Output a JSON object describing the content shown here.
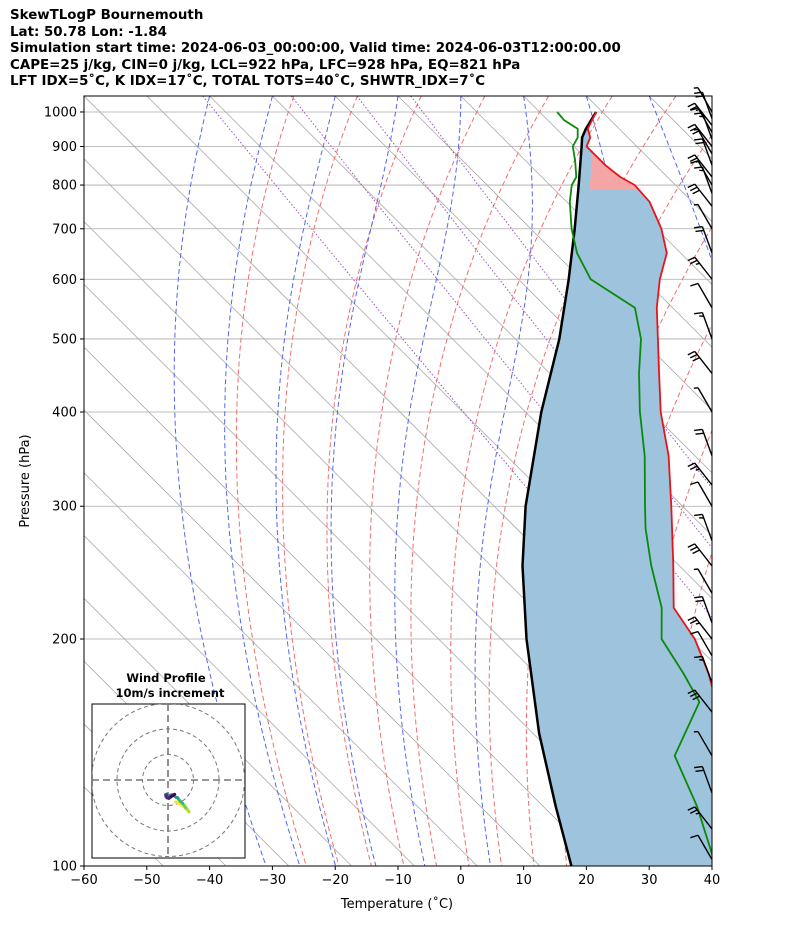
{
  "header": {
    "lines": [
      "SkewTLogP Bournemouth",
      "Lat: 50.78   Lon: -1.84",
      "Simulation start time: 2024-06-03_00:00:00, Valid time: 2024-06-03T12:00:00.00",
      "CAPE=25 j/kg, CIN=0 j/kg, LCL=922 hPa, LFC=928 hPa, EQ=821 hPa",
      "LFT IDX=5˚C, K IDX=17˚C, TOTAL TOTS=40˚C, SHWTR_IDX=7˚C"
    ]
  },
  "colors": {
    "temperature": "#e8141c",
    "dewpoint": "#0a8a0a",
    "parcel": "#000000",
    "cape": "#9ec3dd",
    "cin": "#f4a6a6",
    "dry_adiabat": "#f26d6d",
    "moist_adiabat": "#5566ee",
    "mixing_ratio": "#9a55c4",
    "isotherm": "#aaaaaa",
    "isobar": "#aaaaaa"
  },
  "chart_data": {
    "type": "line",
    "subtype": "skew-T log-P diagram",
    "xlabel": "Temperature (˚C)",
    "ylabel": "Pressure (hPa)",
    "xlim": [
      -60,
      40
    ],
    "ylim": [
      1050,
      100
    ],
    "y_scale": "log",
    "x_ticks": [
      -60,
      -50,
      -40,
      -30,
      -20,
      -10,
      0,
      10,
      20,
      30,
      40
    ],
    "x_tick_labels": [
      "−60",
      "−50",
      "−40",
      "−30",
      "−20",
      "−10",
      "0",
      "10",
      "20",
      "30",
      "40"
    ],
    "y_ticks": [
      1000,
      900,
      800,
      700,
      600,
      500,
      400,
      300,
      200,
      100
    ],
    "grid": true,
    "series": [
      {
        "key": "temperature",
        "p": [
          1000,
          950,
          925,
          900,
          850,
          820,
          800,
          760,
          700,
          650,
          600,
          550,
          500,
          450,
          400,
          350,
          300,
          250,
          220,
          200,
          180,
          160,
          140,
          130,
          120,
          110,
          100
        ],
        "t": [
          19.0,
          15.0,
          14.0,
          12.0,
          12.0,
          12.5,
          13.5,
          13.2,
          10.8,
          7.8,
          2.5,
          -2.5,
          -7.3,
          -12.6,
          -18.5,
          -24.2,
          -31.8,
          -41.0,
          -47.6,
          -49.2,
          -52.5,
          -57.0,
          -61.2,
          -66.0,
          -70.0,
          -75.0,
          -80.0
        ]
      },
      {
        "key": "dewpoint",
        "p": [
          1000,
          975,
          950,
          925,
          900,
          860,
          820,
          800,
          760,
          700,
          650,
          600,
          550,
          500,
          450,
          400,
          350,
          300,
          280,
          250,
          220,
          200,
          180,
          165,
          140,
          120,
          100
        ],
        "t": [
          12.8,
          12.6,
          13.4,
          12.0,
          9.8,
          7.8,
          5.5,
          3.5,
          0.5,
          -3.5,
          -6.5,
          -8.5,
          -6.0,
          -10.0,
          -15.8,
          -21.8,
          -28.0,
          -36.0,
          -39.5,
          -44.5,
          -49.5,
          -54.5,
          -56.5,
          -58.5,
          -71.0,
          -75.5,
          -82.0
        ]
      },
      {
        "key": "parcel",
        "p": [
          1000,
          950,
          925,
          900,
          850,
          800,
          700,
          600,
          500,
          400,
          300,
          250,
          200,
          150,
          120,
          100
        ],
        "t": [
          19.0,
          14.7,
          12.7,
          11.2,
          8.0,
          4.6,
          -3.0,
          -12.0,
          -23.0,
          -37.5,
          -55.0,
          -65.0,
          -76.0,
          -89.0,
          -98.0,
          -105.0
        ]
      }
    ],
    "wind_barbs_p": [
      1000,
      980,
      960,
      940,
      920,
      900,
      880,
      850,
      820,
      800,
      780,
      750,
      700,
      650,
      600,
      550,
      500,
      450,
      400,
      350,
      320,
      300,
      270,
      250,
      230,
      210,
      200,
      190,
      175,
      160,
      140,
      125,
      112,
      102
    ],
    "hodograph": {
      "title": "Wind Profile",
      "subtitle": "10m/s increment",
      "u": [
        3.0,
        4.5,
        6.0,
        7.0,
        7.8,
        8.2,
        7.0,
        6.2,
        5.8,
        4.8,
        4.2,
        3.8,
        3.2,
        2.2,
        1.6,
        1.0,
        0.4,
        0.1,
        -0.3,
        -0.6,
        -0.9,
        -0.8,
        -0.4,
        0.4,
        1.2,
        2.0,
        2.6
      ],
      "v": [
        -8.5,
        -9.3,
        -10.3,
        -11.2,
        -11.8,
        -12.5,
        -10.8,
        -9.8,
        -9.2,
        -8.3,
        -7.6,
        -7.0,
        -6.8,
        -6.1,
        -5.8,
        -5.9,
        -6.4,
        -6.8,
        -6.2,
        -5.6,
        -5.8,
        -6.4,
        -7.0,
        -7.2,
        -6.6,
        -6.0,
        -5.6
      ]
    }
  }
}
